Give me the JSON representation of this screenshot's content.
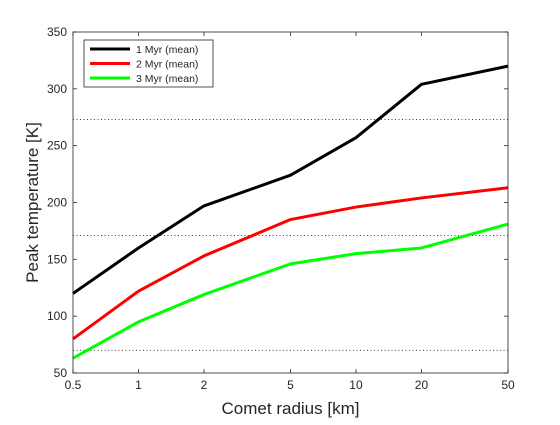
{
  "chart_data": {
    "type": "line",
    "xlabel": "Comet radius [km]",
    "ylabel": "Peak temperature [K]",
    "x_scale": "log",
    "x": [
      0.5,
      1,
      2,
      5,
      10,
      20,
      50
    ],
    "x_ticks": [
      "0.5",
      "1",
      "2",
      "5",
      "10",
      "20",
      "50"
    ],
    "y_ticks": [
      "50",
      "100",
      "150",
      "200",
      "250",
      "300",
      "350"
    ],
    "xlim": [
      0.5,
      50
    ],
    "ylim": [
      50,
      350
    ],
    "reference_lines_y": [
      70,
      171,
      273
    ],
    "reference_line_style": "dotted",
    "grid": false,
    "legend_position": "top-left",
    "series": [
      {
        "name": "1 Myr (mean)",
        "color": "#000000",
        "values": [
          120,
          160,
          197,
          224,
          257,
          304,
          320
        ]
      },
      {
        "name": "2 Myr (mean)",
        "color": "#ff0000",
        "values": [
          80,
          122,
          153,
          185,
          196,
          204,
          213
        ]
      },
      {
        "name": "3 Myr (mean)",
        "color": "#00ff00",
        "values": [
          63,
          95,
          119,
          146,
          155,
          160,
          181
        ]
      }
    ]
  }
}
